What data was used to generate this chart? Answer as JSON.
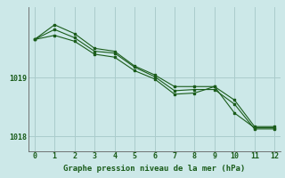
{
  "title": "Graphe pression niveau de la mer (hPa)",
  "bg_color": "#cce8e8",
  "line_color": "#1a5c1a",
  "grid_color": "#aacccc",
  "series": [
    [
      1019.65,
      1019.9,
      1019.75,
      1019.5,
      1019.45,
      1019.2,
      1019.05,
      1018.85,
      1018.85,
      1018.85,
      1018.4,
      1018.15,
      1018.15
    ],
    [
      1019.65,
      1019.82,
      1019.68,
      1019.45,
      1019.42,
      1019.18,
      1019.02,
      1018.78,
      1018.8,
      1018.8,
      1018.55,
      1018.13,
      1018.13
    ],
    [
      1019.65,
      1019.72,
      1019.62,
      1019.4,
      1019.35,
      1019.12,
      1018.98,
      1018.72,
      1018.74,
      1018.85,
      1018.62,
      1018.17,
      1018.17
    ]
  ],
  "x_values": [
    0,
    1,
    2,
    3,
    4,
    5,
    6,
    7,
    8,
    9,
    10,
    11,
    12
  ],
  "ylim": [
    1017.75,
    1020.2
  ],
  "yticks": [
    1018,
    1019
  ],
  "xlim": [
    -0.3,
    12.3
  ],
  "xticks": [
    0,
    1,
    2,
    3,
    4,
    5,
    6,
    7,
    8,
    9,
    10,
    11,
    12
  ]
}
